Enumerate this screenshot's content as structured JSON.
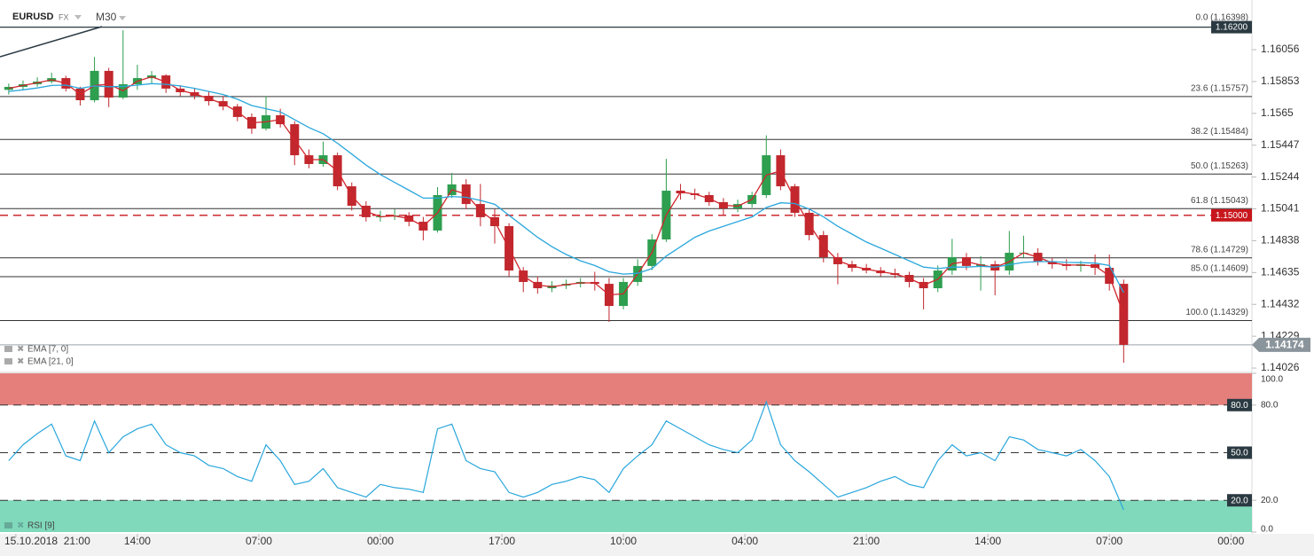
{
  "chart_data": {
    "type": "candlestick",
    "symbol": "EURUSD",
    "market": "FX",
    "timeframe": "M30",
    "x": [
      -1,
      1,
      3,
      5,
      7,
      9,
      11,
      13,
      15,
      17,
      19,
      21,
      23,
      25,
      27,
      29,
      31,
      33,
      35,
      37,
      39,
      41,
      43,
      45,
      47,
      49,
      51,
      53,
      55,
      57,
      59,
      61,
      63,
      65,
      67,
      69,
      71,
      73,
      75,
      77,
      79,
      81,
      83,
      85,
      87,
      89,
      91,
      93,
      95,
      97,
      99,
      101,
      103,
      105,
      107,
      109,
      111,
      113,
      115,
      117,
      119,
      121,
      123,
      125,
      127,
      129,
      131,
      133,
      135,
      137,
      139,
      141,
      143,
      145,
      147,
      149,
      151,
      153,
      155
    ],
    "xlim": [
      -1.6,
      172.7
    ],
    "xticks": [
      {
        "value": 0,
        "label": "15.10.2018  21:00"
      },
      {
        "value": 17,
        "label": "14:00"
      },
      {
        "value": 34,
        "label": "07:00"
      },
      {
        "value": 51,
        "label": "00:00"
      },
      {
        "value": 68,
        "label": "17:00"
      },
      {
        "value": 85,
        "label": "10:00"
      },
      {
        "value": 102,
        "label": "04:00"
      },
      {
        "value": 119,
        "label": "21:00"
      },
      {
        "value": 136,
        "label": "14:00"
      },
      {
        "value": 153,
        "label": "07:00"
      },
      {
        "value": 170,
        "label": "00:00"
      }
    ],
    "ylim": [
      1.13998,
      1.16373
    ],
    "yticks": [
      1.16056,
      1.15853,
      1.1565,
      1.15447,
      1.15244,
      1.15041,
      1.14838,
      1.14635,
      1.14432,
      1.14229,
      1.14026
    ],
    "candles": {
      "up_color": "#2e9e4f",
      "down_color": "#c1272d",
      "ohlc": [
        [
          1.158,
          1.1584,
          1.1577,
          1.15819
        ],
        [
          1.15819,
          1.1586,
          1.158,
          1.15836
        ],
        [
          1.15836,
          1.1588,
          1.1582,
          1.15853
        ],
        [
          1.15853,
          1.1591,
          1.1584,
          1.15875
        ],
        [
          1.15875,
          1.1589,
          1.1579,
          1.15808
        ],
        [
          1.15808,
          1.1582,
          1.157,
          1.15734
        ],
        [
          1.15734,
          1.1601,
          1.1572,
          1.15921
        ],
        [
          1.15921,
          1.1594,
          1.1569,
          1.15751
        ],
        [
          1.15751,
          1.1618,
          1.1574,
          1.15836
        ],
        [
          1.15836,
          1.1596,
          1.158,
          1.15875
        ],
        [
          1.15875,
          1.1592,
          1.1584,
          1.15892
        ],
        [
          1.15892,
          1.159,
          1.1578,
          1.15808
        ],
        [
          1.15808,
          1.1583,
          1.1576,
          1.15785
        ],
        [
          1.15785,
          1.1581,
          1.1574,
          1.15762
        ],
        [
          1.15762,
          1.1579,
          1.157,
          1.15728
        ],
        [
          1.15728,
          1.1576,
          1.1567,
          1.15694
        ],
        [
          1.15694,
          1.1571,
          1.156,
          1.15627
        ],
        [
          1.15627,
          1.1565,
          1.1552,
          1.15553
        ],
        [
          1.15553,
          1.1576,
          1.1554,
          1.15638
        ],
        [
          1.15638,
          1.1568,
          1.1556,
          1.15581
        ],
        [
          1.15581,
          1.156,
          1.1532,
          1.15383
        ],
        [
          1.15383,
          1.1542,
          1.153,
          1.15327
        ],
        [
          1.15327,
          1.1547,
          1.1531,
          1.15383
        ],
        [
          1.15383,
          1.154,
          1.1516,
          1.15185
        ],
        [
          1.15185,
          1.1521,
          1.1503,
          1.15061
        ],
        [
          1.15061,
          1.1509,
          1.1496,
          1.14988
        ],
        [
          1.14988,
          1.1503,
          1.1496,
          1.14993
        ],
        [
          1.14993,
          1.1504,
          1.1497,
          1.14999
        ],
        [
          1.14999,
          1.1502,
          1.1493,
          1.14959
        ],
        [
          1.14959,
          1.1499,
          1.1484,
          1.14903
        ],
        [
          1.14903,
          1.1518,
          1.1489,
          1.15129
        ],
        [
          1.15129,
          1.1527,
          1.1511,
          1.15197
        ],
        [
          1.15197,
          1.1523,
          1.1504,
          1.15072
        ],
        [
          1.15072,
          1.152,
          1.1493,
          1.14988
        ],
        [
          1.14988,
          1.1504,
          1.1482,
          1.14931
        ],
        [
          1.14931,
          1.1495,
          1.1461,
          1.14648
        ],
        [
          1.14648,
          1.1467,
          1.1451,
          1.14575
        ],
        [
          1.14575,
          1.1461,
          1.145,
          1.14535
        ],
        [
          1.14535,
          1.1458,
          1.1451,
          1.14552
        ],
        [
          1.14552,
          1.1459,
          1.1453,
          1.14563
        ],
        [
          1.14563,
          1.146,
          1.1454,
          1.14575
        ],
        [
          1.14575,
          1.1464,
          1.1452,
          1.14563
        ],
        [
          1.14563,
          1.146,
          1.1432,
          1.14422
        ],
        [
          1.14422,
          1.146,
          1.144,
          1.14575
        ],
        [
          1.14575,
          1.1472,
          1.1455,
          1.14677
        ],
        [
          1.14677,
          1.1488,
          1.1465,
          1.14846
        ],
        [
          1.14846,
          1.1536,
          1.1483,
          1.15157
        ],
        [
          1.15157,
          1.152,
          1.151,
          1.1514
        ],
        [
          1.1514,
          1.1517,
          1.151,
          1.15129
        ],
        [
          1.15129,
          1.1515,
          1.1506,
          1.15084
        ],
        [
          1.15084,
          1.1511,
          1.15,
          1.15044
        ],
        [
          1.15044,
          1.151,
          1.1502,
          1.15072
        ],
        [
          1.15072,
          1.1515,
          1.1505,
          1.15129
        ],
        [
          1.15129,
          1.1551,
          1.1511,
          1.15383
        ],
        [
          1.15383,
          1.1542,
          1.1516,
          1.15185
        ],
        [
          1.15185,
          1.152,
          1.1499,
          1.15016
        ],
        [
          1.15016,
          1.1504,
          1.1484,
          1.14874
        ],
        [
          1.14874,
          1.149,
          1.147,
          1.14733
        ],
        [
          1.14733,
          1.1476,
          1.1456,
          1.14688
        ],
        [
          1.14688,
          1.1471,
          1.1464,
          1.14665
        ],
        [
          1.14665,
          1.1469,
          1.1463,
          1.14648
        ],
        [
          1.14648,
          1.1467,
          1.1461,
          1.14631
        ],
        [
          1.14631,
          1.1466,
          1.146,
          1.1462
        ],
        [
          1.1462,
          1.1464,
          1.1454,
          1.14575
        ],
        [
          1.14575,
          1.146,
          1.144,
          1.14535
        ],
        [
          1.14535,
          1.1468,
          1.1451,
          1.14648
        ],
        [
          1.14648,
          1.1485,
          1.1462,
          1.14733
        ],
        [
          1.14733,
          1.1476,
          1.1465,
          1.14677
        ],
        [
          1.14677,
          1.1474,
          1.1452,
          1.14688
        ],
        [
          1.14688,
          1.1471,
          1.1449,
          1.14648
        ],
        [
          1.14648,
          1.149,
          1.1462,
          1.14761
        ],
        [
          1.14761,
          1.1487,
          1.1473,
          1.14761
        ],
        [
          1.14761,
          1.1479,
          1.1468,
          1.14705
        ],
        [
          1.14705,
          1.1473,
          1.1466,
          1.14688
        ],
        [
          1.14688,
          1.1472,
          1.1465,
          1.14677
        ],
        [
          1.14677,
          1.1471,
          1.1464,
          1.14688
        ],
        [
          1.14688,
          1.1475,
          1.1462,
          1.14665
        ],
        [
          1.14665,
          1.1475,
          1.1452,
          1.14563
        ],
        [
          1.14563,
          1.1459,
          1.1406,
          1.14174
        ]
      ]
    },
    "indicators": [
      {
        "name": "EMA [7, 0]",
        "color": "#d0262d",
        "values": [
          1.1581,
          1.15828,
          1.15845,
          1.15864,
          1.15842,
          1.15771,
          1.15828,
          1.15836,
          1.15794,
          1.15855,
          1.15884,
          1.1585,
          1.15797,
          1.15774,
          1.15745,
          1.15711,
          1.15661,
          1.1559,
          1.15596,
          1.1561,
          1.15482,
          1.15355,
          1.15355,
          1.15284,
          1.15123,
          1.15025,
          1.14991,
          1.14996,
          1.14979,
          1.14931,
          1.15016,
          1.15163,
          1.15135,
          1.1503,
          1.1496,
          1.1479,
          1.14612,
          1.14555,
          1.14544,
          1.14558,
          1.14569,
          1.14569,
          1.14493,
          1.14499,
          1.14626,
          1.14762,
          1.15002,
          1.15149,
          1.15135,
          1.15107,
          1.15064,
          1.15058,
          1.15101,
          1.15256,
          1.15284,
          1.15101,
          1.14945,
          1.14804,
          1.14711,
          1.14677,
          1.14657,
          1.1464,
          1.14626,
          1.14598,
          1.14555,
          1.14592,
          1.14691,
          1.14705,
          1.14683,
          1.14668,
          1.14705,
          1.14761,
          1.14733,
          1.14697,
          1.14683,
          1.14683,
          1.14677,
          1.14614,
          1.14369
        ]
      },
      {
        "name": "EMA [21, 0]",
        "color": "#2aa7dc",
        "values": [
          1.1579,
          1.158,
          1.15812,
          1.15828,
          1.1583,
          1.1581,
          1.15825,
          1.1582,
          1.15822,
          1.1583,
          1.1584,
          1.15835,
          1.15825,
          1.1581,
          1.1579,
          1.1577,
          1.1574,
          1.157,
          1.1568,
          1.1566,
          1.1561,
          1.1556,
          1.1552,
          1.1546,
          1.1539,
          1.1532,
          1.1526,
          1.1521,
          1.1516,
          1.1511,
          1.1511,
          1.1512,
          1.15115,
          1.15095,
          1.1507,
          1.15,
          1.1493,
          1.1486,
          1.148,
          1.1475,
          1.1471,
          1.1468,
          1.1464,
          1.14625,
          1.1463,
          1.1466,
          1.1474,
          1.148,
          1.1486,
          1.149,
          1.1493,
          1.1496,
          1.1499,
          1.1505,
          1.1508,
          1.15075,
          1.1504,
          1.1499,
          1.1493,
          1.1488,
          1.1483,
          1.1479,
          1.1475,
          1.1471,
          1.1467,
          1.1466,
          1.1467,
          1.1467,
          1.14675,
          1.1467,
          1.14685,
          1.147,
          1.14705,
          1.14705,
          1.147,
          1.14698,
          1.14695,
          1.1468,
          1.14507
        ]
      }
    ],
    "fib_levels": [
      {
        "value": 1.16398,
        "label": "0.0 (1.16398)"
      },
      {
        "value": 1.15757,
        "label": "23.6 (1.15757)"
      },
      {
        "value": 1.15484,
        "label": "38.2 (1.15484)"
      },
      {
        "value": 1.15263,
        "label": "50.0 (1.15263)"
      },
      {
        "value": 1.15043,
        "label": "61.8 (1.15043)"
      },
      {
        "value": 1.14729,
        "label": "78.6 (1.14729)"
      },
      {
        "value": 1.14609,
        "label": "85.0 (1.14609)"
      },
      {
        "value": 1.14329,
        "label": "100.0 (1.14329)"
      }
    ],
    "price_lines": [
      {
        "value": 1.162,
        "label": "1.16200",
        "color": "#2b3a42",
        "dashed": false
      },
      {
        "value": 1.15,
        "label": "1.15000",
        "color": "#c8161d",
        "dashed": true
      }
    ],
    "current_price": {
      "value": 1.14174,
      "label": "1.14174",
      "color": "#8a949b"
    },
    "rsi": {
      "name": "RSI [9]",
      "color": "#2aa7dc",
      "values": [
        45,
        55,
        62,
        68,
        48,
        45,
        70,
        50,
        60,
        65,
        68,
        55,
        50,
        48,
        42,
        40,
        35,
        32,
        55,
        45,
        30,
        32,
        40,
        28,
        25,
        22,
        30,
        28,
        27,
        25,
        65,
        68,
        45,
        40,
        38,
        25,
        22,
        25,
        30,
        32,
        35,
        33,
        25,
        40,
        48,
        55,
        70,
        65,
        60,
        55,
        52,
        50,
        58,
        82,
        55,
        45,
        38,
        30,
        22,
        25,
        28,
        32,
        35,
        30,
        28,
        45,
        55,
        48,
        50,
        45,
        60,
        58,
        52,
        50,
        48,
        52,
        45,
        35,
        14
      ],
      "ylim": [
        0,
        100
      ],
      "yticks": [
        {
          "value": 0,
          "label": "0.0"
        },
        {
          "value": 20,
          "label": "20.0"
        },
        {
          "value": 80,
          "label": "80.0"
        },
        {
          "value": 100,
          "label": "100.0"
        }
      ],
      "levels": [
        {
          "value": 80,
          "label": "80.0"
        },
        {
          "value": 50,
          "label": "50.0"
        },
        {
          "value": 20,
          "label": "20.0"
        }
      ],
      "upper_zone": {
        "from": 80,
        "to": 100,
        "color": "#e47f7c"
      },
      "lower_zone": {
        "from": 0,
        "to": 20,
        "color": "#7fd9ba"
      }
    }
  }
}
